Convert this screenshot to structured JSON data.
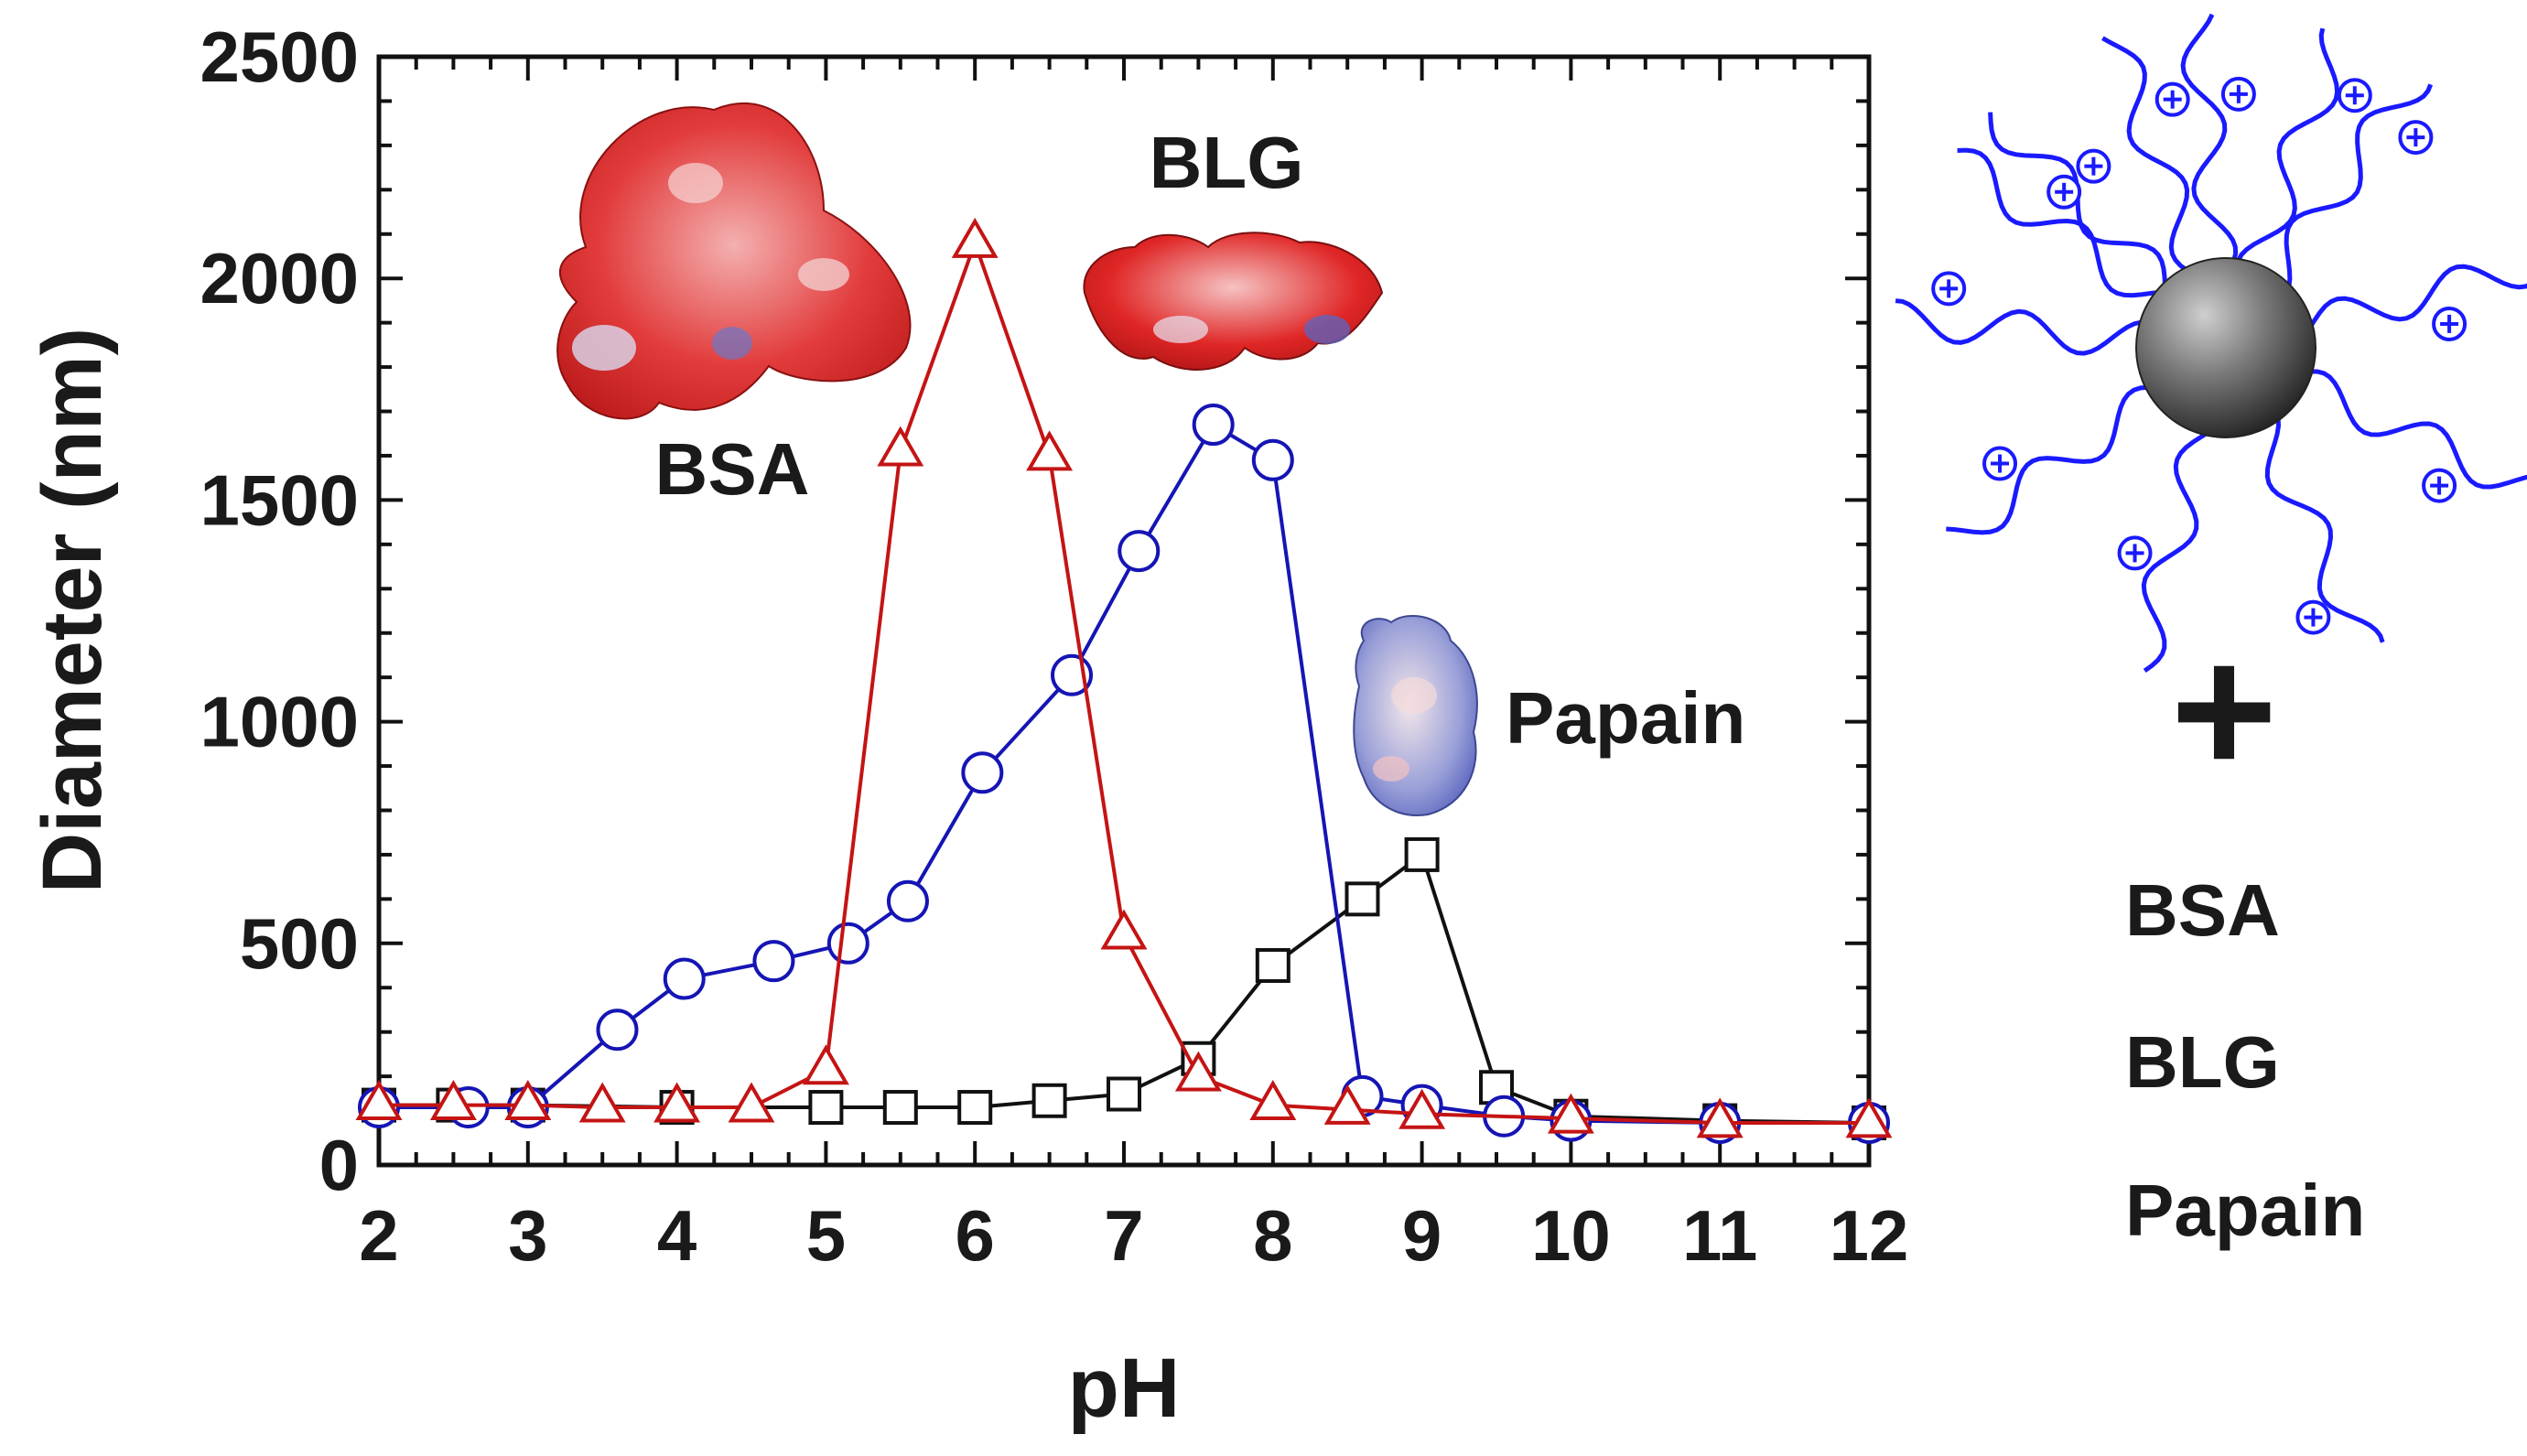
{
  "chart_data": {
    "type": "line",
    "title": "",
    "xlabel": "pH",
    "ylabel": "Diameter (nm)",
    "xlim": [
      2,
      12
    ],
    "ylim": [
      0,
      2500
    ],
    "xticks": [
      "2",
      "3",
      "4",
      "5",
      "6",
      "7",
      "8",
      "9",
      "10",
      "11",
      "12"
    ],
    "yticks": [
      "0",
      "500",
      "1000",
      "1500",
      "2000",
      "2500"
    ],
    "series": [
      {
        "name": "Papain",
        "color": "#111111",
        "marker": "square",
        "x": [
          2,
          2.5,
          3,
          4,
          5,
          5.5,
          6,
          6.5,
          7,
          7.5,
          8,
          8.6,
          9,
          9.5,
          10,
          11,
          12
        ],
        "y": [
          135,
          135,
          135,
          130,
          130,
          130,
          130,
          145,
          160,
          240,
          450,
          600,
          700,
          175,
          110,
          100,
          95
        ]
      },
      {
        "name": "BLG",
        "color": "#1515b5",
        "marker": "circle",
        "x": [
          2,
          2.6,
          3,
          3.6,
          4.05,
          4.65,
          5.15,
          5.55,
          6.05,
          6.65,
          7.1,
          7.6,
          8.0,
          8.6,
          9.0,
          9.55,
          10,
          11,
          12
        ],
        "y": [
          130,
          130,
          130,
          305,
          420,
          460,
          500,
          595,
          885,
          1105,
          1385,
          1670,
          1590,
          155,
          135,
          110,
          100,
          95,
          95
        ]
      },
      {
        "name": "BSA",
        "color": "#c41414",
        "marker": "triangle",
        "x": [
          2,
          2.5,
          3,
          3.5,
          4,
          4.5,
          5,
          5.5,
          6,
          6.5,
          7,
          7.5,
          8,
          8.5,
          9,
          10,
          11,
          12
        ],
        "y": [
          135,
          135,
          135,
          130,
          130,
          130,
          215,
          1610,
          2080,
          1600,
          520,
          200,
          135,
          125,
          115,
          105,
          95,
          95
        ]
      }
    ],
    "annotations": {
      "bsa": "BSA",
      "blg": "BLG",
      "papain": "Papain"
    }
  },
  "legend": {
    "plus": "+",
    "items": [
      "BSA",
      "BLG",
      "Papain"
    ]
  },
  "colors": {
    "axis": "#111111",
    "chain": "#1a1aff",
    "nanoparticle": "#555555"
  }
}
